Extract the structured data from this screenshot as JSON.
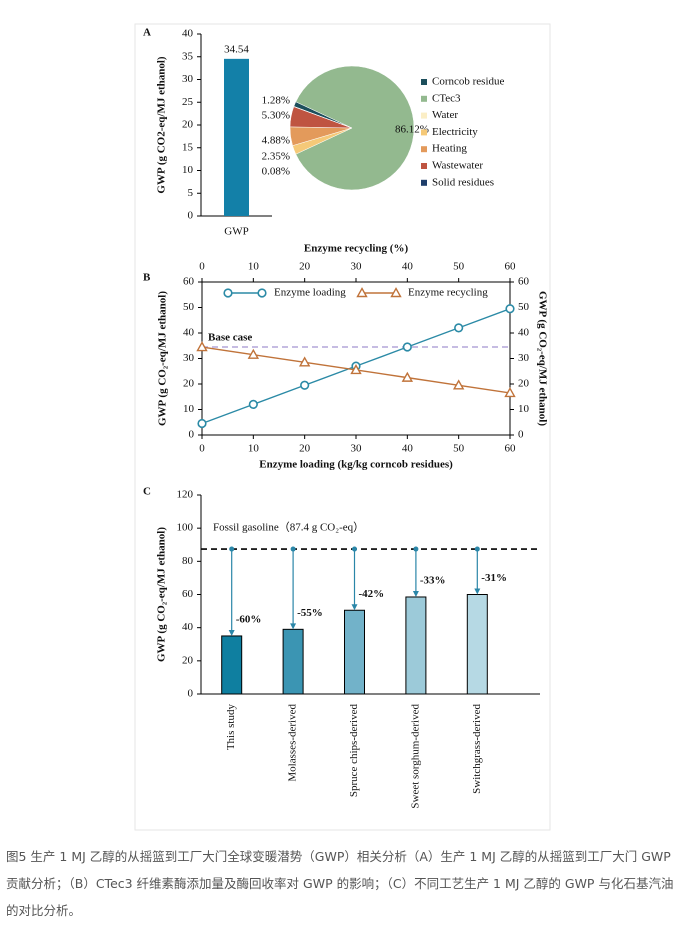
{
  "chart_data": [
    {
      "type": "bar",
      "panel": "A",
      "categories": [
        "GWP"
      ],
      "values": [
        34.54
      ],
      "color": "#1380a8",
      "ylabel": "GWP (g CO2-eq/MJ ethanol)",
      "ylim": [
        0,
        40
      ],
      "yticks": [
        0,
        5,
        10,
        15,
        20,
        25,
        30,
        35,
        40
      ]
    },
    {
      "type": "pie",
      "categories": [
        "Corncob residue",
        "CTec3",
        "Water",
        "Electricity",
        "Heating",
        "Wastewater",
        "Solid residues"
      ],
      "values": [
        1.28,
        86.12,
        0,
        2.35,
        4.88,
        5.3,
        0.08
      ],
      "value_labels": [
        "1.28%",
        "86.12%",
        null,
        "2.35%",
        "4.88%",
        "5.30%",
        "0.08%"
      ],
      "colors": [
        "#1d4f5c",
        "#93b98f",
        "#fbeec6",
        "#f5c978",
        "#e39a5b",
        "#bf5441",
        "#1e3e6a"
      ],
      "legend": "right"
    },
    {
      "type": "line",
      "panel": "B",
      "xlabel": "Enzyme loading (kg/kg corncob residues)",
      "x2label": "Enzyme recycling (%)",
      "ylabel": "GWP (g CO₂-eq/MJ ethanol)",
      "y2label": "GWP (g CO₂-eq/MJ ethanol)",
      "x": [
        0,
        10,
        20,
        30,
        40,
        50,
        60
      ],
      "xlim": [
        0,
        60
      ],
      "xticks": [
        0,
        10,
        20,
        30,
        40,
        50,
        60
      ],
      "x2lim": [
        0,
        60
      ],
      "x2ticks": [
        0,
        10,
        20,
        30,
        40,
        50,
        60
      ],
      "ylim": [
        0,
        60
      ],
      "yticks": [
        0,
        10,
        20,
        30,
        40,
        50,
        60
      ],
      "y2lim": [
        0,
        60
      ],
      "y2ticks": [
        0,
        10,
        20,
        30,
        40,
        50,
        60
      ],
      "series": [
        {
          "name": "Enzyme loading",
          "color": "#2b8aa6",
          "marker": "circle",
          "values": [
            4.5,
            12,
            19.5,
            27,
            34.5,
            42,
            49.5
          ]
        },
        {
          "name": "Enzyme recycling",
          "color": "#c0733a",
          "marker": "triangle",
          "xaxis": "x2",
          "values": [
            34.5,
            31.5,
            28.5,
            25.5,
            22.5,
            19.5,
            16.5
          ]
        }
      ],
      "reference_line": {
        "label": "Base case",
        "value": 34.5,
        "color": "#b3a6d8"
      },
      "legend": "top"
    },
    {
      "type": "bar",
      "panel": "C",
      "categories": [
        "This study",
        "Molasses-derived",
        "Spruce chips-derived",
        "Sweet sorghum-derived",
        "Switchgrass-derived"
      ],
      "values": [
        35,
        39,
        50.5,
        58.5,
        60
      ],
      "colors": [
        "#0f7fa0",
        "#3b95b3",
        "#72b2c9",
        "#9ccad9",
        "#b6d9e4"
      ],
      "ylabel": "GWP (g CO₂-eq/MJ ethanol)",
      "ylim": [
        0,
        120
      ],
      "yticks": [
        0,
        20,
        40,
        60,
        80,
        100,
        120
      ],
      "reference_line": {
        "label": "Fossil gasoline（87.4 g CO₂-eq）",
        "value": 87.4
      },
      "reductions": [
        -60,
        -55,
        -42,
        -33,
        -31
      ],
      "reduction_labels": [
        "-60%",
        "-55%",
        "-42%",
        "-33%",
        "-31%"
      ],
      "annotation_color": "#2a86a8"
    }
  ],
  "caption": "图5 生产 1 MJ 乙醇的从摇篮到工厂大门全球变暖潜势（GWP）相关分析（A）生产 1 MJ 乙醇的从摇篮到工厂大门 GWP 贡献分析；（B）CTec3 纤维素酶添加量及酶回收率对 GWP 的影响；（C）不同工艺生产 1 MJ 乙醇的 GWP 与化石基汽油的对比分析。"
}
